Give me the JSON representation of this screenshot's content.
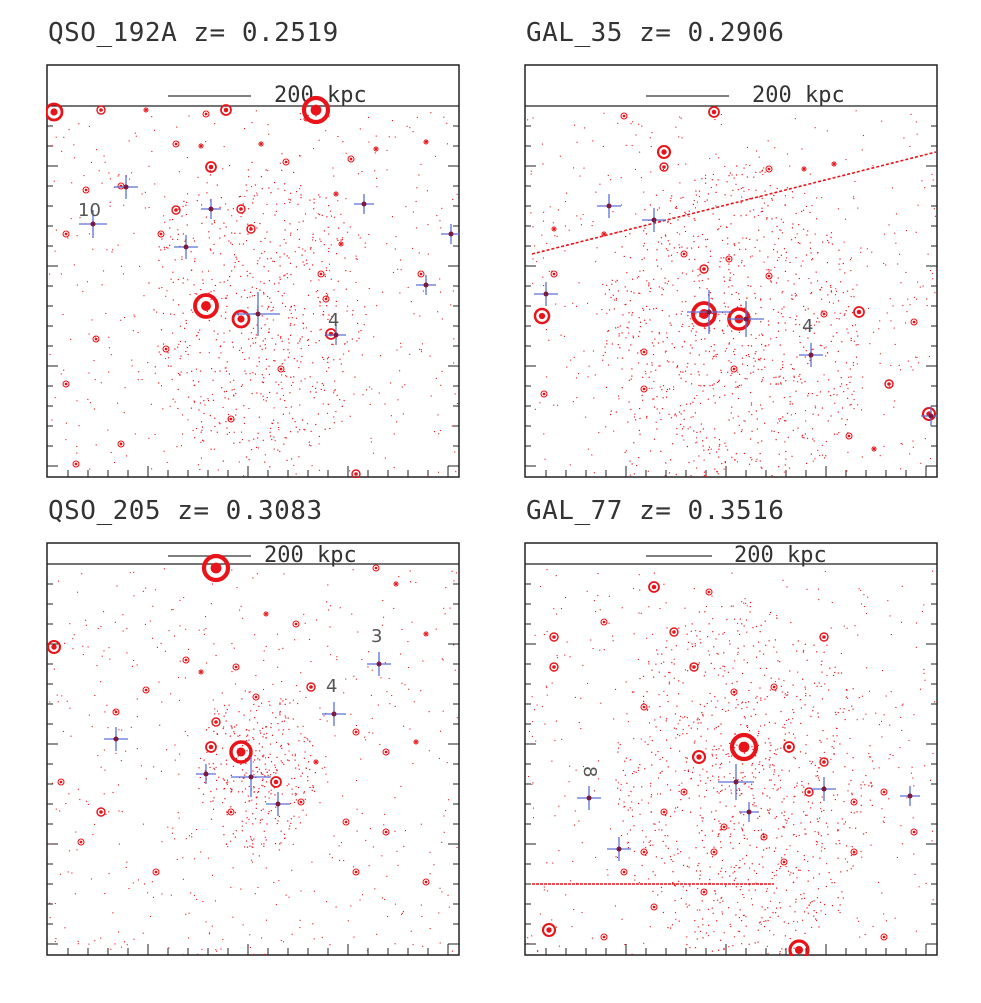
{
  "panels": [
    {
      "name": "QSO_192A",
      "title": "QSO_192A z= 0.2519",
      "scale_label": "200 kpc",
      "labels": [
        "10",
        "4"
      ]
    },
    {
      "name": "GAL_35",
      "title": "GAL_35 z= 0.2906",
      "scale_label": "200 kpc",
      "labels": [
        "4"
      ]
    },
    {
      "name": "QSO_205",
      "title": "QSO_205 z= 0.3083",
      "scale_label": "200 kpc",
      "labels": [
        "3",
        "4"
      ]
    },
    {
      "name": "GAL_77",
      "title": "GAL_77 z= 0.3516",
      "scale_label": "200 kpc",
      "labels": [
        "8"
      ]
    }
  ],
  "colors": {
    "source": "#e8141a",
    "marker": "#5b6fd8",
    "frame": "#222222"
  }
}
